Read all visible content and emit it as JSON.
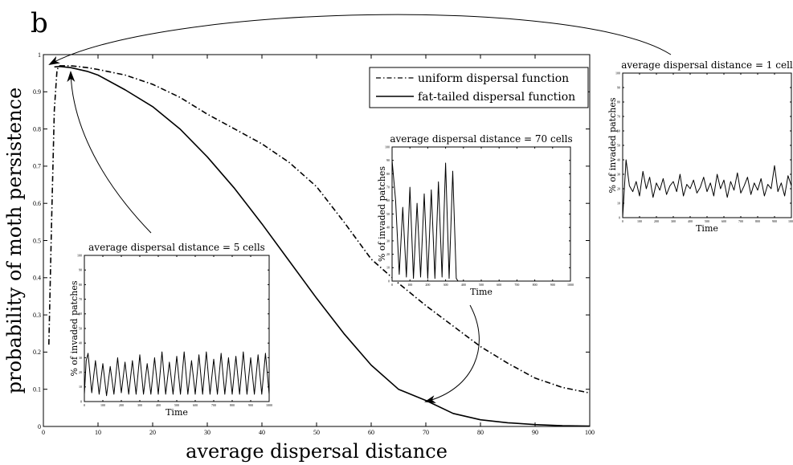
{
  "panel_label": "b",
  "chart_data": [
    {
      "type": "line",
      "title": "",
      "xlabel": "average dispersal distance",
      "ylabel": "probability of moth persistence",
      "xlim": [
        0,
        100
      ],
      "ylim": [
        0,
        1
      ],
      "xticks": [
        0,
        10,
        20,
        30,
        40,
        50,
        60,
        70,
        80,
        90,
        100
      ],
      "yticks": [
        0,
        0.1,
        0.2,
        0.3,
        0.4,
        0.5,
        0.6,
        0.7,
        0.8,
        0.9,
        1
      ],
      "legend_position": "top-right",
      "grid": false,
      "series": [
        {
          "name": "uniform dispersal function",
          "style": "dash-dot",
          "color": "#000000",
          "x": [
            1,
            1.5,
            2,
            2.5,
            3,
            5,
            8,
            10,
            15,
            20,
            25,
            30,
            35,
            40,
            45,
            50,
            55,
            60,
            65,
            70,
            75,
            80,
            85,
            90,
            95,
            100
          ],
          "y": [
            0.22,
            0.55,
            0.85,
            0.96,
            0.97,
            0.97,
            0.965,
            0.96,
            0.945,
            0.92,
            0.885,
            0.84,
            0.8,
            0.76,
            0.71,
            0.645,
            0.55,
            0.45,
            0.385,
            0.325,
            0.27,
            0.215,
            0.17,
            0.13,
            0.105,
            0.09
          ]
        },
        {
          "name": "fat-tailed dispersal function",
          "style": "solid",
          "color": "#000000",
          "x": [
            2,
            3,
            5,
            8,
            10,
            15,
            20,
            25,
            30,
            35,
            40,
            45,
            50,
            55,
            60,
            65,
            70,
            75,
            80,
            85,
            90,
            95,
            100
          ],
          "y": [
            0.967,
            0.968,
            0.965,
            0.955,
            0.945,
            0.905,
            0.86,
            0.8,
            0.725,
            0.64,
            0.545,
            0.445,
            0.345,
            0.25,
            0.165,
            0.1,
            0.07,
            0.035,
            0.018,
            0.01,
            0.005,
            0.002,
            0.001
          ]
        }
      ]
    },
    {
      "type": "line",
      "title": "average dispersal distance = 5 cells",
      "xlabel": "Time",
      "ylabel": "% of invaded patches",
      "xlim": [
        0,
        1000
      ],
      "ylim": [
        0,
        100
      ],
      "xticks": [
        0,
        100,
        200,
        300,
        400,
        500,
        600,
        700,
        800,
        900,
        1000
      ],
      "yticks": [
        0,
        10,
        20,
        30,
        40,
        50,
        60,
        70,
        80,
        90,
        100
      ],
      "series": [
        {
          "name": "",
          "pattern": "regular oscillation",
          "x": [
            0,
            10,
            20,
            40,
            60,
            80,
            100,
            120,
            140,
            160,
            180,
            200,
            220,
            240,
            260,
            280,
            300,
            320,
            340,
            360,
            380,
            400,
            420,
            440,
            460,
            480,
            500,
            520,
            540,
            560,
            580,
            600,
            620,
            640,
            660,
            680,
            700,
            720,
            740,
            760,
            780,
            800,
            820,
            840,
            860,
            880,
            900,
            920,
            940,
            960,
            980,
            1000
          ],
          "y": [
            5,
            28,
            33,
            6,
            28,
            5,
            26,
            4,
            24,
            5,
            30,
            6,
            27,
            5,
            28,
            5,
            32,
            5,
            26,
            5,
            30,
            5,
            34,
            5,
            27,
            5,
            31,
            5,
            34,
            5,
            28,
            5,
            32,
            5,
            34,
            5,
            29,
            5,
            33,
            5,
            30,
            5,
            31,
            5,
            34,
            5,
            30,
            5,
            32,
            5,
            33,
            5
          ]
        }
      ]
    },
    {
      "type": "line",
      "title": "average dispersal distance = 70 cells",
      "xlabel": "Time",
      "ylabel": "% of invaded patches",
      "xlim": [
        0,
        1000
      ],
      "ylim": [
        0,
        100
      ],
      "xticks": [
        0,
        100,
        200,
        300,
        400,
        500,
        600,
        700,
        800,
        900,
        1000
      ],
      "yticks": [
        0,
        10,
        20,
        30,
        40,
        50,
        60,
        70,
        80,
        90,
        100
      ],
      "series": [
        {
          "name": "",
          "pattern": "large oscillations then extinction near t=370",
          "x": [
            0,
            20,
            40,
            60,
            80,
            100,
            120,
            140,
            160,
            180,
            200,
            220,
            240,
            260,
            280,
            300,
            320,
            340,
            360,
            370,
            380,
            1000
          ],
          "y": [
            90,
            60,
            5,
            55,
            3,
            70,
            2,
            58,
            3,
            65,
            2,
            68,
            2,
            74,
            3,
            88,
            2,
            82,
            2,
            0,
            0,
            0
          ]
        }
      ]
    },
    {
      "type": "line",
      "title": "average dispersal distance = 1 cell",
      "xlabel": "Time",
      "ylabel": "% of invaded patches",
      "xlim": [
        0,
        1000
      ],
      "ylim": [
        0,
        100
      ],
      "xticks": [
        0,
        100,
        200,
        300,
        400,
        500,
        600,
        700,
        800,
        900,
        1000
      ],
      "yticks": [
        0,
        10,
        20,
        30,
        40,
        50,
        60,
        70,
        80,
        90,
        100
      ],
      "series": [
        {
          "name": "",
          "pattern": "noisy fluctuation around 20",
          "x": [
            0,
            20,
            40,
            60,
            80,
            100,
            120,
            140,
            160,
            180,
            200,
            220,
            240,
            260,
            280,
            300,
            320,
            340,
            360,
            380,
            400,
            420,
            440,
            460,
            480,
            500,
            520,
            540,
            560,
            580,
            600,
            620,
            640,
            660,
            680,
            700,
            720,
            740,
            760,
            780,
            800,
            820,
            840,
            860,
            880,
            900,
            920,
            940,
            960,
            980,
            1000
          ],
          "y": [
            0,
            40,
            22,
            18,
            25,
            15,
            32,
            20,
            28,
            14,
            24,
            19,
            27,
            16,
            22,
            25,
            18,
            30,
            15,
            23,
            20,
            26,
            17,
            21,
            28,
            18,
            24,
            15,
            30,
            20,
            26,
            14,
            25,
            19,
            31,
            17,
            22,
            28,
            16,
            24,
            19,
            27,
            15,
            23,
            20,
            36,
            18,
            24,
            15,
            29,
            22
          ]
        }
      ]
    }
  ]
}
